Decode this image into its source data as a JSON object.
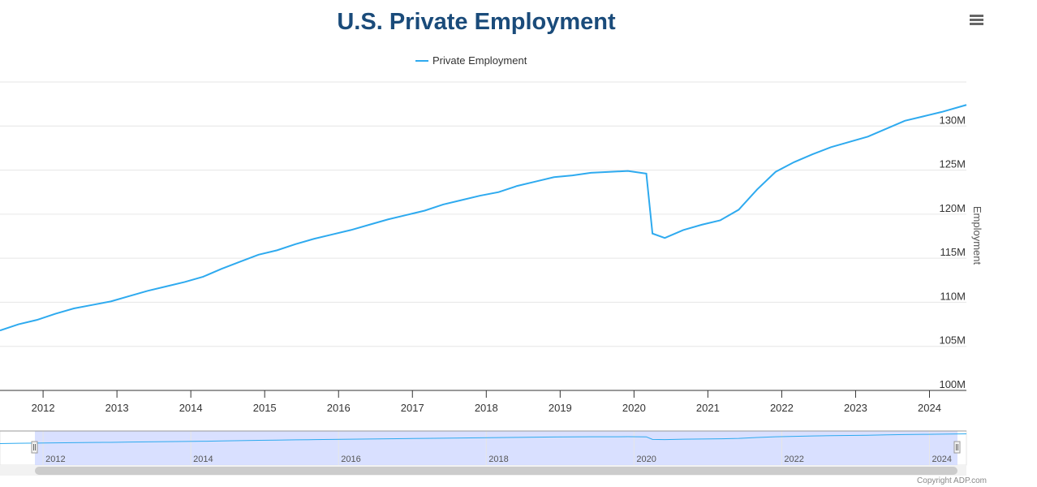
{
  "title": "U.S. Private Employment",
  "credit": "Copyright ADP.com",
  "icons": {
    "menu": "hamburger-menu-icon"
  },
  "colors": {
    "series": "#2eaaef",
    "title": "#1a4b7a",
    "navigator_fill": "#ccd6ff",
    "navigator_line": "#2eaaef"
  },
  "chart_data": {
    "type": "line",
    "title": "U.S. Private Employment",
    "xlabel": "",
    "ylabel": "Employment",
    "ylim": [
      100000000,
      135000000
    ],
    "xlim": [
      "2011-06",
      "2024-07"
    ],
    "yticks": [
      {
        "value": 100000000,
        "label": "100M"
      },
      {
        "value": 105000000,
        "label": "105M"
      },
      {
        "value": 110000000,
        "label": "110M"
      },
      {
        "value": 115000000,
        "label": "115M"
      },
      {
        "value": 120000000,
        "label": "120M"
      },
      {
        "value": 125000000,
        "label": "125M"
      },
      {
        "value": 130000000,
        "label": "130M"
      }
    ],
    "xticks": [
      "2012",
      "2013",
      "2014",
      "2015",
      "2016",
      "2017",
      "2018",
      "2019",
      "2020",
      "2021",
      "2022",
      "2023",
      "2024"
    ],
    "navigator_ticks": [
      "2012",
      "2014",
      "2016",
      "2018",
      "2020",
      "2022",
      "2024"
    ],
    "legend": "top-center",
    "grid": true,
    "series": [
      {
        "name": "Private Employment",
        "points": [
          [
            "2011-06",
            106800000
          ],
          [
            "2011-09",
            107500000
          ],
          [
            "2011-12",
            108000000
          ],
          [
            "2012-03",
            108700000
          ],
          [
            "2012-06",
            109300000
          ],
          [
            "2012-09",
            109700000
          ],
          [
            "2012-12",
            110100000
          ],
          [
            "2013-03",
            110700000
          ],
          [
            "2013-06",
            111300000
          ],
          [
            "2013-09",
            111800000
          ],
          [
            "2013-12",
            112300000
          ],
          [
            "2014-03",
            112900000
          ],
          [
            "2014-06",
            113800000
          ],
          [
            "2014-09",
            114600000
          ],
          [
            "2014-12",
            115400000
          ],
          [
            "2015-03",
            115900000
          ],
          [
            "2015-06",
            116600000
          ],
          [
            "2015-09",
            117200000
          ],
          [
            "2015-12",
            117700000
          ],
          [
            "2016-03",
            118200000
          ],
          [
            "2016-06",
            118800000
          ],
          [
            "2016-09",
            119400000
          ],
          [
            "2016-12",
            119900000
          ],
          [
            "2017-03",
            120400000
          ],
          [
            "2017-06",
            121100000
          ],
          [
            "2017-09",
            121600000
          ],
          [
            "2017-12",
            122100000
          ],
          [
            "2018-03",
            122500000
          ],
          [
            "2018-06",
            123200000
          ],
          [
            "2018-09",
            123700000
          ],
          [
            "2018-12",
            124200000
          ],
          [
            "2019-03",
            124400000
          ],
          [
            "2019-06",
            124700000
          ],
          [
            "2019-09",
            124800000
          ],
          [
            "2019-12",
            124900000
          ],
          [
            "2020-03",
            124600000
          ],
          [
            "2020-04",
            117800000
          ],
          [
            "2020-06",
            117300000
          ],
          [
            "2020-09",
            118200000
          ],
          [
            "2020-12",
            118800000
          ],
          [
            "2021-03",
            119300000
          ],
          [
            "2021-06",
            120500000
          ],
          [
            "2021-09",
            122800000
          ],
          [
            "2021-12",
            124800000
          ],
          [
            "2022-03",
            125900000
          ],
          [
            "2022-06",
            126800000
          ],
          [
            "2022-09",
            127600000
          ],
          [
            "2022-12",
            128200000
          ],
          [
            "2023-03",
            128800000
          ],
          [
            "2023-06",
            129700000
          ],
          [
            "2023-09",
            130600000
          ],
          [
            "2023-12",
            131100000
          ],
          [
            "2024-03",
            131600000
          ],
          [
            "2024-07",
            132400000
          ]
        ]
      }
    ]
  }
}
